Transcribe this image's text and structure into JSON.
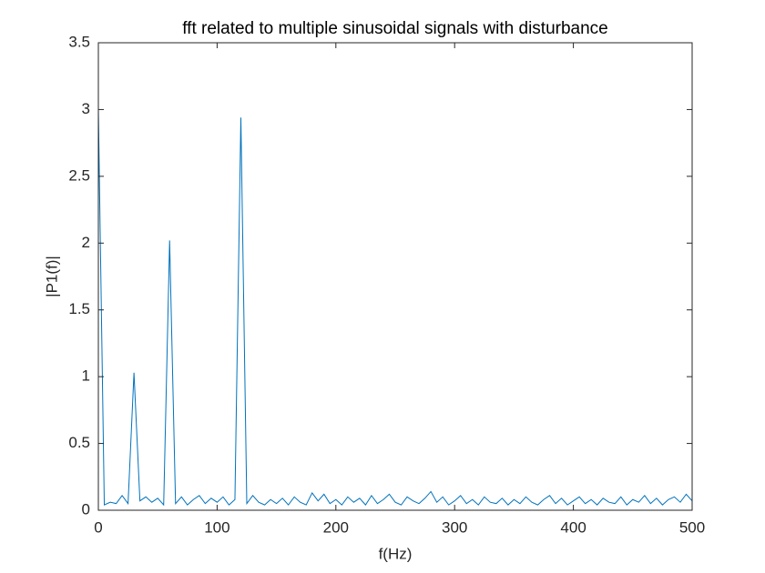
{
  "chart_data": {
    "type": "line",
    "title": "fft related to multiple sinusoidal signals with disturbance",
    "x_label": "f(Hz)",
    "y_label": "|P1(f)|",
    "x": [
      0,
      5,
      10,
      15,
      20,
      25,
      30,
      35,
      40,
      45,
      50,
      55,
      60,
      65,
      70,
      75,
      80,
      85,
      90,
      95,
      100,
      105,
      110,
      115,
      120,
      125,
      130,
      135,
      140,
      145,
      150,
      155,
      160,
      165,
      170,
      175,
      180,
      185,
      190,
      195,
      200,
      205,
      210,
      215,
      220,
      225,
      230,
      235,
      240,
      245,
      250,
      255,
      260,
      265,
      270,
      275,
      280,
      285,
      290,
      295,
      300,
      305,
      310,
      315,
      320,
      325,
      330,
      335,
      340,
      345,
      350,
      355,
      360,
      365,
      370,
      375,
      380,
      385,
      390,
      395,
      400,
      405,
      410,
      415,
      420,
      425,
      430,
      435,
      440,
      445,
      450,
      455,
      460,
      465,
      470,
      475,
      480,
      485,
      490,
      495,
      500
    ],
    "series": [
      {
        "name": "P1",
        "color": "#0072bd",
        "values": [
          3.0,
          0.04,
          0.06,
          0.05,
          0.11,
          0.05,
          1.03,
          0.07,
          0.1,
          0.06,
          0.09,
          0.04,
          2.02,
          0.05,
          0.1,
          0.04,
          0.08,
          0.11,
          0.05,
          0.09,
          0.06,
          0.1,
          0.04,
          0.08,
          2.94,
          0.05,
          0.11,
          0.06,
          0.04,
          0.08,
          0.05,
          0.09,
          0.04,
          0.1,
          0.06,
          0.04,
          0.13,
          0.07,
          0.12,
          0.05,
          0.08,
          0.04,
          0.1,
          0.06,
          0.09,
          0.04,
          0.11,
          0.05,
          0.08,
          0.12,
          0.06,
          0.04,
          0.1,
          0.07,
          0.05,
          0.09,
          0.14,
          0.06,
          0.1,
          0.04,
          0.07,
          0.11,
          0.05,
          0.08,
          0.04,
          0.1,
          0.06,
          0.05,
          0.09,
          0.04,
          0.08,
          0.05,
          0.1,
          0.06,
          0.04,
          0.08,
          0.11,
          0.05,
          0.09,
          0.04,
          0.07,
          0.1,
          0.05,
          0.08,
          0.04,
          0.09,
          0.06,
          0.05,
          0.1,
          0.04,
          0.08,
          0.06,
          0.11,
          0.05,
          0.09,
          0.04,
          0.08,
          0.1,
          0.06,
          0.12,
          0.07
        ]
      }
    ],
    "xlim": [
      0,
      500
    ],
    "ylim": [
      0,
      3.5
    ],
    "xticks": [
      0,
      100,
      200,
      300,
      400,
      500
    ],
    "yticks": [
      0,
      0.5,
      1,
      1.5,
      2,
      2.5,
      3,
      3.5
    ]
  }
}
